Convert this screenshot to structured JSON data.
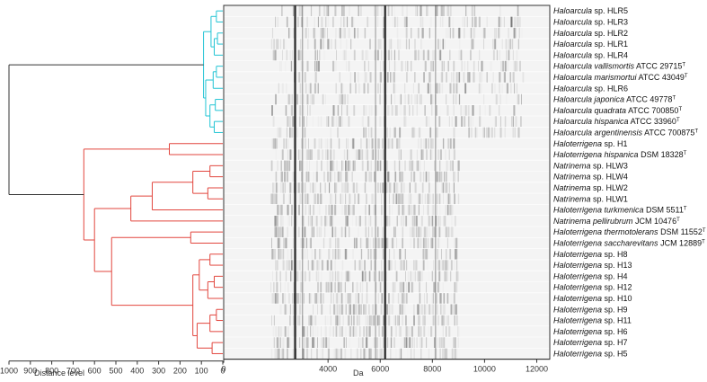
{
  "chart_data": [
    {
      "type": "dendrogram",
      "xlabel": "Distance level",
      "xlim": [
        1000,
        0
      ],
      "ticks": [
        1000,
        900,
        800,
        700,
        600,
        500,
        400,
        300,
        200,
        100,
        0
      ],
      "colors": {
        "upper_cluster": "#22c4d4",
        "lower_cluster": "#e2463e",
        "root": "#333333"
      },
      "clusters": [
        {
          "name": "upper",
          "rows": [
            0,
            11
          ],
          "color": "#22c4d4"
        },
        {
          "name": "lower",
          "rows": [
            12,
            31
          ],
          "color": "#e2463e"
        }
      ],
      "root_merge_distance": 1000
    },
    {
      "type": "heatmap",
      "xlabel": "Da",
      "xlim": [
        0,
        12500
      ],
      "ticks": [
        0,
        4000,
        6000,
        8000,
        10000,
        12000
      ],
      "tick_labels": [
        "0",
        "4000",
        "6000",
        "8000",
        "10000",
        "12000"
      ],
      "colormap": "grayscale",
      "rows": [
        {
          "genus": "Haloarcula",
          "rest": " sp. HLR5",
          "sup": ""
        },
        {
          "genus": "Haloarcula",
          "rest": " sp. HLR3",
          "sup": ""
        },
        {
          "genus": "Haloarcula",
          "rest": " sp. HLR2",
          "sup": ""
        },
        {
          "genus": "Haloarcula",
          "rest": " sp. HLR1",
          "sup": ""
        },
        {
          "genus": "Haloarcula",
          "rest": " sp. HLR4",
          "sup": ""
        },
        {
          "genus": "Haloarcula vallismortis",
          "rest": " ATCC 29715",
          "sup": "T"
        },
        {
          "genus": "Haloarcula marismortui",
          "rest": " ATCC 43049",
          "sup": "T"
        },
        {
          "genus": "Haloarcula",
          "rest": " sp. HLR6",
          "sup": ""
        },
        {
          "genus": "Haloarcula japonica",
          "rest": " ATCC 49778",
          "sup": "T"
        },
        {
          "genus": "Haloarcula quadrata",
          "rest": " ATCC 700850",
          "sup": "T"
        },
        {
          "genus": "Haloarcula hispanica",
          "rest": " ATCC 33960",
          "sup": "T"
        },
        {
          "genus": "Haloarcula argentinensis",
          "rest": " ATCC 700875",
          "sup": "T"
        },
        {
          "genus": "Haloterrigena",
          "rest": " sp. H1",
          "sup": ""
        },
        {
          "genus": "Haloterrigena hispanica",
          "rest": " DSM 18328",
          "sup": "T"
        },
        {
          "genus": "Natrinema",
          "rest": " sp. HLW3",
          "sup": ""
        },
        {
          "genus": "Natrinema",
          "rest": " sp. HLW4",
          "sup": ""
        },
        {
          "genus": "Natrinema",
          "rest": " sp. HLW2",
          "sup": ""
        },
        {
          "genus": "Natrinema",
          "rest": " sp. HLW1",
          "sup": ""
        },
        {
          "genus": "Haloterrigena turkmenica",
          "rest": " DSM 5511",
          "sup": "T"
        },
        {
          "genus": "Natrinema pellirubrum",
          "rest": " JCM 10476",
          "sup": "T"
        },
        {
          "genus": "Haloterrigena thermotolerans",
          "rest": " DSM 11552",
          "sup": "T"
        },
        {
          "genus": "Haloterrigena saccharevitans",
          "rest": " JCM 12889",
          "sup": "T"
        },
        {
          "genus": "Haloterrigena",
          "rest": " sp. H8",
          "sup": ""
        },
        {
          "genus": "Haloterrigena",
          "rest": " sp. H13",
          "sup": ""
        },
        {
          "genus": "Haloterrigena",
          "rest": " sp. H4",
          "sup": ""
        },
        {
          "genus": "Haloterrigena",
          "rest": " sp. H12",
          "sup": ""
        },
        {
          "genus": "Haloterrigena",
          "rest": " sp. H10",
          "sup": ""
        },
        {
          "genus": "Haloterrigena",
          "rest": " sp. H9",
          "sup": ""
        },
        {
          "genus": "Haloterrigena",
          "rest": " sp. H11",
          "sup": ""
        },
        {
          "genus": "Haloterrigena",
          "rest": " sp. H6",
          "sup": ""
        },
        {
          "genus": "Haloterrigena",
          "rest": " sp. H7",
          "sup": ""
        },
        {
          "genus": "Haloterrigena",
          "rest": " sp. H5",
          "sup": ""
        }
      ],
      "global_peaks_da": [
        2700,
        6150,
        5800,
        8100,
        3000
      ]
    }
  ]
}
